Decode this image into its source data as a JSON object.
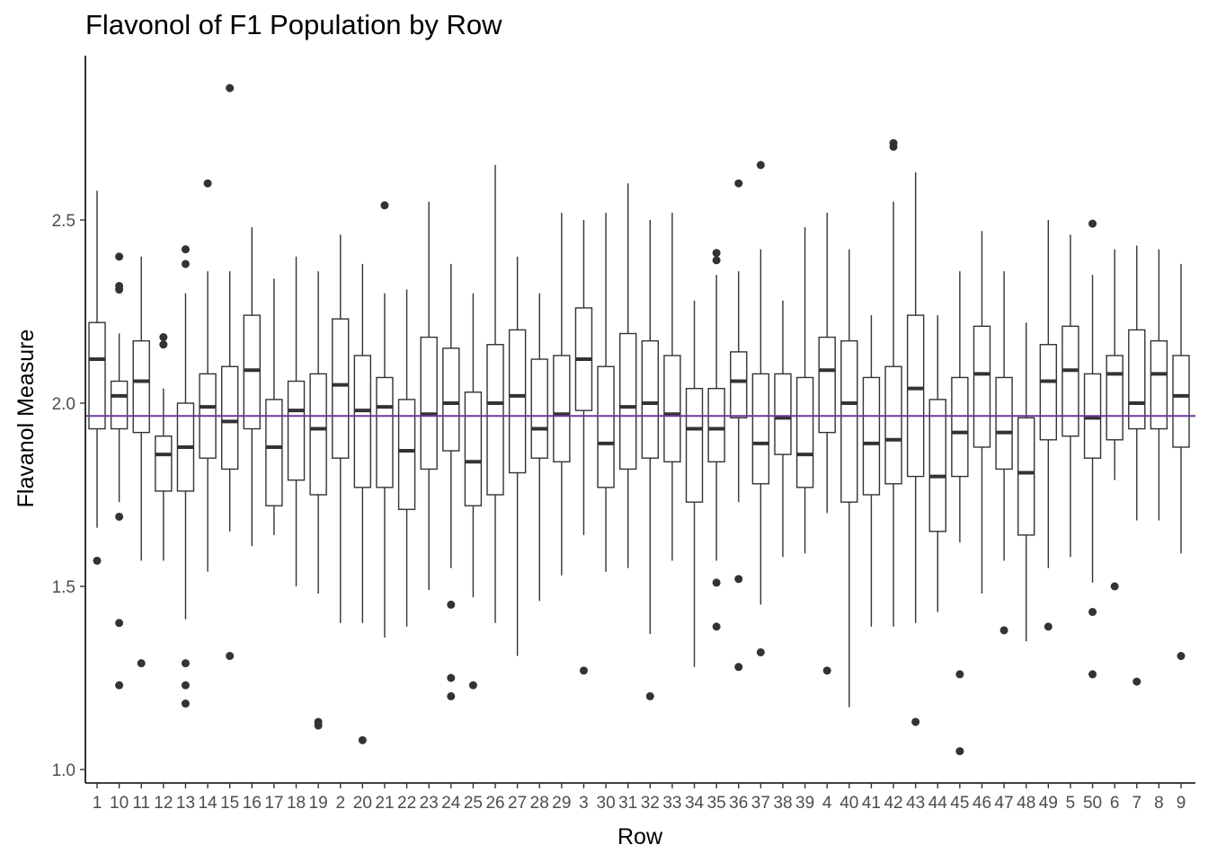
{
  "chart_data": {
    "type": "boxplot",
    "title": "Flavonol of F1 Population by Row",
    "xlabel": "Row",
    "ylabel": "Flavanol Measure",
    "ylim": [
      0.98,
      2.96
    ],
    "yticks": [
      1.0,
      1.5,
      2.0,
      2.5
    ],
    "ytick_labels": [
      "1.0",
      "1.5",
      "2.0",
      "2.5"
    ],
    "reference_line": {
      "y": 1.965,
      "color": "#6a3d9a"
    },
    "grid": false,
    "box_color": "#333333",
    "categories": [
      "1",
      "10",
      "11",
      "12",
      "13",
      "14",
      "15",
      "16",
      "17",
      "18",
      "19",
      "2",
      "20",
      "21",
      "22",
      "23",
      "24",
      "25",
      "26",
      "27",
      "28",
      "29",
      "3",
      "30",
      "31",
      "32",
      "33",
      "34",
      "35",
      "36",
      "37",
      "38",
      "39",
      "4",
      "40",
      "41",
      "42",
      "43",
      "44",
      "45",
      "46",
      "47",
      "48",
      "49",
      "5",
      "50",
      "6",
      "7",
      "8",
      "9"
    ],
    "boxes": [
      {
        "whislo": 1.66,
        "q1": 1.93,
        "med": 2.12,
        "q3": 2.22,
        "whishi": 2.58,
        "outliers": [
          1.57
        ]
      },
      {
        "whislo": 1.73,
        "q1": 1.93,
        "med": 2.02,
        "q3": 2.06,
        "whishi": 2.19,
        "outliers": [
          2.4,
          2.32,
          2.31,
          1.69,
          1.4,
          1.23
        ]
      },
      {
        "whislo": 1.57,
        "q1": 1.92,
        "med": 2.06,
        "q3": 2.17,
        "whishi": 2.4,
        "outliers": [
          1.29
        ]
      },
      {
        "whislo": 1.57,
        "q1": 1.76,
        "med": 1.86,
        "q3": 1.91,
        "whishi": 2.04,
        "outliers": [
          2.18,
          2.16
        ]
      },
      {
        "whislo": 1.41,
        "q1": 1.76,
        "med": 1.88,
        "q3": 2.0,
        "whishi": 2.3,
        "outliers": [
          2.42,
          2.38,
          1.29,
          1.23,
          1.18
        ]
      },
      {
        "whislo": 1.54,
        "q1": 1.85,
        "med": 1.99,
        "q3": 2.08,
        "whishi": 2.36,
        "outliers": [
          2.6
        ]
      },
      {
        "whislo": 1.65,
        "q1": 1.82,
        "med": 1.95,
        "q3": 2.1,
        "whishi": 2.36,
        "outliers": [
          2.86,
          1.31
        ]
      },
      {
        "whislo": 1.61,
        "q1": 1.93,
        "med": 2.09,
        "q3": 2.24,
        "whishi": 2.48,
        "outliers": []
      },
      {
        "whislo": 1.64,
        "q1": 1.72,
        "med": 1.88,
        "q3": 2.01,
        "whishi": 2.34,
        "outliers": []
      },
      {
        "whislo": 1.5,
        "q1": 1.79,
        "med": 1.98,
        "q3": 2.06,
        "whishi": 2.4,
        "outliers": []
      },
      {
        "whislo": 1.48,
        "q1": 1.75,
        "med": 1.93,
        "q3": 2.08,
        "whishi": 2.36,
        "outliers": [
          1.13,
          1.12
        ]
      },
      {
        "whislo": 1.4,
        "q1": 1.85,
        "med": 2.05,
        "q3": 2.23,
        "whishi": 2.46,
        "outliers": []
      },
      {
        "whislo": 1.4,
        "q1": 1.77,
        "med": 1.98,
        "q3": 2.13,
        "whishi": 2.38,
        "outliers": [
          1.08
        ]
      },
      {
        "whislo": 1.36,
        "q1": 1.77,
        "med": 1.99,
        "q3": 2.07,
        "whishi": 2.3,
        "outliers": [
          2.54
        ]
      },
      {
        "whislo": 1.39,
        "q1": 1.71,
        "med": 1.87,
        "q3": 2.01,
        "whishi": 2.31,
        "outliers": []
      },
      {
        "whislo": 1.49,
        "q1": 1.82,
        "med": 1.97,
        "q3": 2.18,
        "whishi": 2.55,
        "outliers": []
      },
      {
        "whislo": 1.55,
        "q1": 1.87,
        "med": 2.0,
        "q3": 2.15,
        "whishi": 2.38,
        "outliers": [
          1.45,
          1.25,
          1.2
        ]
      },
      {
        "whislo": 1.47,
        "q1": 1.72,
        "med": 1.84,
        "q3": 2.03,
        "whishi": 2.3,
        "outliers": [
          1.23
        ]
      },
      {
        "whislo": 1.4,
        "q1": 1.75,
        "med": 2.0,
        "q3": 2.16,
        "whishi": 2.65,
        "outliers": []
      },
      {
        "whislo": 1.31,
        "q1": 1.81,
        "med": 2.02,
        "q3": 2.2,
        "whishi": 2.4,
        "outliers": []
      },
      {
        "whislo": 1.46,
        "q1": 1.85,
        "med": 1.93,
        "q3": 2.12,
        "whishi": 2.3,
        "outliers": []
      },
      {
        "whislo": 1.53,
        "q1": 1.84,
        "med": 1.97,
        "q3": 2.13,
        "whishi": 2.52,
        "outliers": []
      },
      {
        "whislo": 1.64,
        "q1": 1.98,
        "med": 2.12,
        "q3": 2.26,
        "whishi": 2.5,
        "outliers": [
          1.27
        ]
      },
      {
        "whislo": 1.54,
        "q1": 1.77,
        "med": 1.89,
        "q3": 2.1,
        "whishi": 2.52,
        "outliers": []
      },
      {
        "whislo": 1.55,
        "q1": 1.82,
        "med": 1.99,
        "q3": 2.19,
        "whishi": 2.6,
        "outliers": []
      },
      {
        "whislo": 1.37,
        "q1": 1.85,
        "med": 2.0,
        "q3": 2.17,
        "whishi": 2.5,
        "outliers": [
          1.2
        ]
      },
      {
        "whislo": 1.57,
        "q1": 1.84,
        "med": 1.97,
        "q3": 2.13,
        "whishi": 2.52,
        "outliers": []
      },
      {
        "whislo": 1.28,
        "q1": 1.73,
        "med": 1.93,
        "q3": 2.04,
        "whishi": 2.28,
        "outliers": []
      },
      {
        "whislo": 1.57,
        "q1": 1.84,
        "med": 1.93,
        "q3": 2.04,
        "whishi": 2.35,
        "outliers": [
          2.41,
          2.39,
          1.51,
          1.39
        ]
      },
      {
        "whislo": 1.73,
        "q1": 1.96,
        "med": 2.06,
        "q3": 2.14,
        "whishi": 2.36,
        "outliers": [
          2.6,
          1.52,
          1.28
        ]
      },
      {
        "whislo": 1.45,
        "q1": 1.78,
        "med": 1.89,
        "q3": 2.08,
        "whishi": 2.42,
        "outliers": [
          2.65,
          1.32
        ]
      },
      {
        "whislo": 1.58,
        "q1": 1.86,
        "med": 1.96,
        "q3": 2.08,
        "whishi": 2.28,
        "outliers": []
      },
      {
        "whislo": 1.59,
        "q1": 1.77,
        "med": 1.86,
        "q3": 2.07,
        "whishi": 2.48,
        "outliers": []
      },
      {
        "whislo": 1.7,
        "q1": 1.92,
        "med": 2.09,
        "q3": 2.18,
        "whishi": 2.52,
        "outliers": [
          1.27
        ]
      },
      {
        "whislo": 1.17,
        "q1": 1.73,
        "med": 2.0,
        "q3": 2.17,
        "whishi": 2.42,
        "outliers": []
      },
      {
        "whislo": 1.39,
        "q1": 1.75,
        "med": 1.89,
        "q3": 2.07,
        "whishi": 2.24,
        "outliers": []
      },
      {
        "whislo": 1.39,
        "q1": 1.78,
        "med": 1.9,
        "q3": 2.1,
        "whishi": 2.55,
        "outliers": [
          2.71,
          2.7
        ]
      },
      {
        "whislo": 1.4,
        "q1": 1.8,
        "med": 2.04,
        "q3": 2.24,
        "whishi": 2.63,
        "outliers": [
          1.13
        ]
      },
      {
        "whislo": 1.43,
        "q1": 1.65,
        "med": 1.8,
        "q3": 2.01,
        "whishi": 2.24,
        "outliers": []
      },
      {
        "whislo": 1.62,
        "q1": 1.8,
        "med": 1.92,
        "q3": 2.07,
        "whishi": 2.36,
        "outliers": [
          1.26,
          1.05
        ]
      },
      {
        "whislo": 1.48,
        "q1": 1.88,
        "med": 2.08,
        "q3": 2.21,
        "whishi": 2.47,
        "outliers": []
      },
      {
        "whislo": 1.57,
        "q1": 1.82,
        "med": 1.92,
        "q3": 2.07,
        "whishi": 2.36,
        "outliers": [
          1.38
        ]
      },
      {
        "whislo": 1.35,
        "q1": 1.64,
        "med": 1.81,
        "q3": 1.96,
        "whishi": 2.22,
        "outliers": []
      },
      {
        "whislo": 1.55,
        "q1": 1.9,
        "med": 2.06,
        "q3": 2.16,
        "whishi": 2.5,
        "outliers": [
          1.39
        ]
      },
      {
        "whislo": 1.58,
        "q1": 1.91,
        "med": 2.09,
        "q3": 2.21,
        "whishi": 2.46,
        "outliers": []
      },
      {
        "whislo": 1.51,
        "q1": 1.85,
        "med": 1.96,
        "q3": 2.08,
        "whishi": 2.35,
        "outliers": [
          2.49,
          1.43,
          1.26
        ]
      },
      {
        "whislo": 1.79,
        "q1": 1.9,
        "med": 2.08,
        "q3": 2.13,
        "whishi": 2.42,
        "outliers": [
          1.5
        ]
      },
      {
        "whislo": 1.68,
        "q1": 1.93,
        "med": 2.0,
        "q3": 2.2,
        "whishi": 2.43,
        "outliers": [
          1.24
        ]
      },
      {
        "whislo": 1.68,
        "q1": 1.93,
        "med": 2.08,
        "q3": 2.17,
        "whishi": 2.42,
        "outliers": []
      },
      {
        "whislo": 1.59,
        "q1": 1.88,
        "med": 2.02,
        "q3": 2.13,
        "whishi": 2.38,
        "outliers": [
          1.31
        ]
      }
    ]
  }
}
